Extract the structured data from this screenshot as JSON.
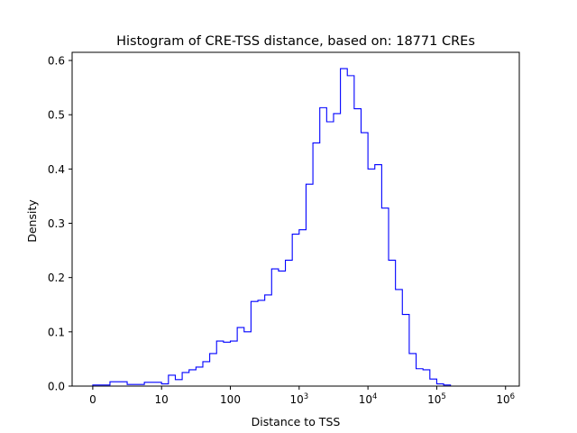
{
  "chart_data": {
    "type": "histogram-step",
    "title": "Histogram of CRE-TSS distance, based on: 18771 CREs",
    "xlabel": "Distance to TSS",
    "ylabel": "Density",
    "x_scale": "symlog",
    "xlim": [
      -0.3,
      6.2
    ],
    "ylim": [
      0,
      0.615
    ],
    "grid": false,
    "line_color": "#0000ff",
    "x_ticks": [
      {
        "value": 0,
        "base": "0",
        "exp": ""
      },
      {
        "value": 1,
        "base": "10",
        "exp": ""
      },
      {
        "value": 2,
        "base": "100",
        "exp": ""
      },
      {
        "value": 3,
        "base": "10",
        "exp": "3"
      },
      {
        "value": 4,
        "base": "10",
        "exp": "4"
      },
      {
        "value": 5,
        "base": "10",
        "exp": "5"
      },
      {
        "value": 6,
        "base": "10",
        "exp": "6"
      }
    ],
    "y_ticks": [
      "0.0",
      "0.1",
      "0.2",
      "0.3",
      "0.4",
      "0.5",
      "0.6"
    ],
    "bin_edges": [
      0,
      0.25,
      0.5,
      0.75,
      1,
      1.1,
      1.2,
      1.3,
      1.4,
      1.5,
      1.6,
      1.7,
      1.8,
      1.9,
      2,
      2.1,
      2.2,
      2.3,
      2.4,
      2.5,
      2.6,
      2.7,
      2.8,
      2.9,
      3,
      3.1,
      3.2,
      3.3,
      3.4,
      3.5,
      3.6,
      3.7,
      3.8,
      3.9,
      4,
      4.1,
      4.2,
      4.3,
      4.4,
      4.5,
      4.6,
      4.7,
      4.8,
      4.9,
      5,
      5.1,
      5.2,
      5.3,
      5.4,
      5.5,
      5.6,
      5.7
    ],
    "densities": [
      0.002,
      0.008,
      0.003,
      0.007,
      0.004,
      0.02,
      0.012,
      0.025,
      0.03,
      0.035,
      0.045,
      0.06,
      0.083,
      0.081,
      0.083,
      0.108,
      0.1,
      0.156,
      0.158,
      0.168,
      0.216,
      0.212,
      0.232,
      0.28,
      0.288,
      0.372,
      0.448,
      0.513,
      0.487,
      0.502,
      0.585,
      0.572,
      0.511,
      0.467,
      0.4,
      0.408,
      0.328,
      0.232,
      0.178,
      0.132,
      0.06,
      0.032,
      0.03,
      0.013,
      0.004,
      0.002,
      0,
      0,
      0,
      0,
      0
    ]
  }
}
